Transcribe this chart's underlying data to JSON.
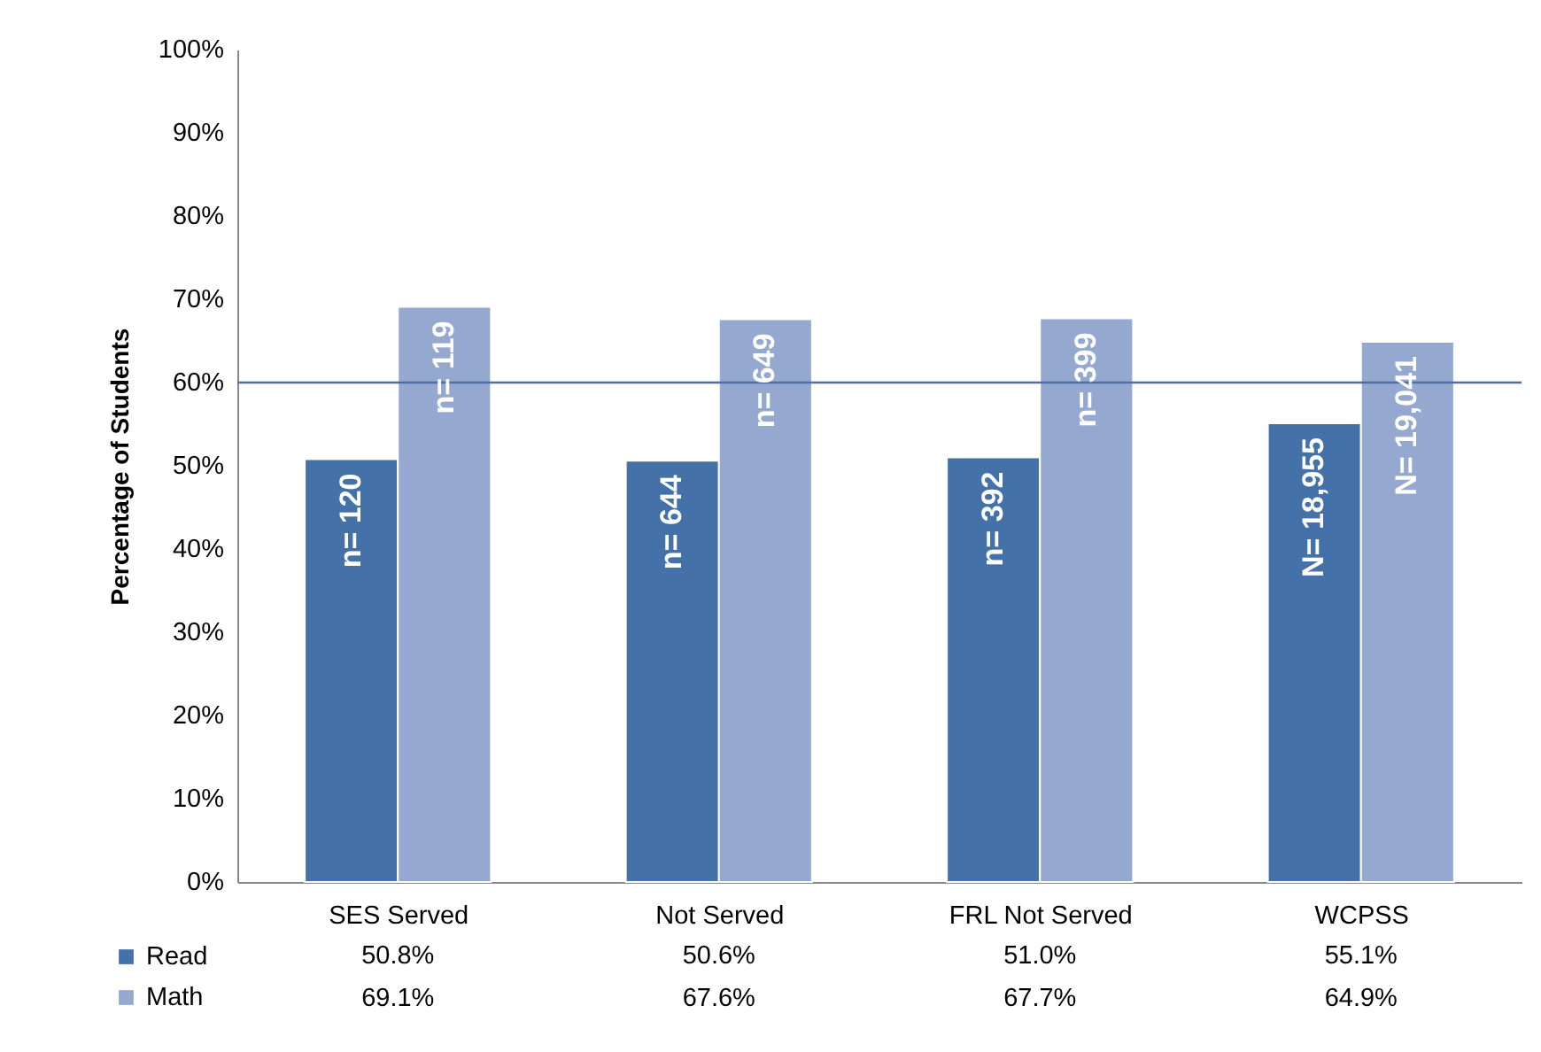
{
  "chart_data": {
    "type": "bar",
    "ylabel": "Percentage of Students",
    "categories": [
      "SES Served",
      "Not Served",
      "FRL Not Served",
      "WCPSS"
    ],
    "series": [
      {
        "name": "Read",
        "color": "#4472a8",
        "values": [
          50.8,
          50.6,
          51.0,
          55.1
        ],
        "value_labels": [
          "50.8%",
          "50.6%",
          "51.0%",
          "55.1%"
        ]
      },
      {
        "name": "Math",
        "color": "#95a9d0",
        "values": [
          69.1,
          67.6,
          67.7,
          64.9
        ],
        "value_labels": [
          "69.1%",
          "67.6%",
          "67.7%",
          "64.9%"
        ]
      }
    ],
    "ylim": [
      0,
      100
    ],
    "yticks": [
      {
        "value": 0,
        "label": "0%"
      },
      {
        "value": 10,
        "label": "10%"
      },
      {
        "value": 20,
        "label": "20%"
      },
      {
        "value": 30,
        "label": "30%"
      },
      {
        "value": 40,
        "label": "40%"
      },
      {
        "value": 50,
        "label": "50%"
      },
      {
        "value": 60,
        "label": "60%"
      },
      {
        "value": 70,
        "label": "70%"
      },
      {
        "value": 80,
        "label": "80%"
      },
      {
        "value": 90,
        "label": "90%"
      },
      {
        "value": 100,
        "label": "100%"
      }
    ],
    "ref_lines": [
      {
        "axis": "y",
        "value": 60,
        "color": "#4f6ea6"
      }
    ],
    "annotations": [
      {
        "text": "n= 120",
        "x": "SES Served",
        "y": 50.8
      },
      {
        "text": "n= 119",
        "x": "SES Served",
        "y": 69.1
      },
      {
        "text": "n= 644",
        "x": "Not Served",
        "y": 50.6
      },
      {
        "text": "n= 649",
        "x": "Not Served",
        "y": 67.6
      },
      {
        "text": "n= 392",
        "x": "FRL Not Served",
        "y": 51.0
      },
      {
        "text": "n= 399",
        "x": "FRL Not Served",
        "y": 67.7
      },
      {
        "text": "N= 18,955",
        "x": "WCPSS",
        "y": 55.1
      },
      {
        "text": "N= 19,041",
        "x": "WCPSS",
        "y": 64.9
      }
    ],
    "grid": false,
    "legend": "bottom left"
  }
}
